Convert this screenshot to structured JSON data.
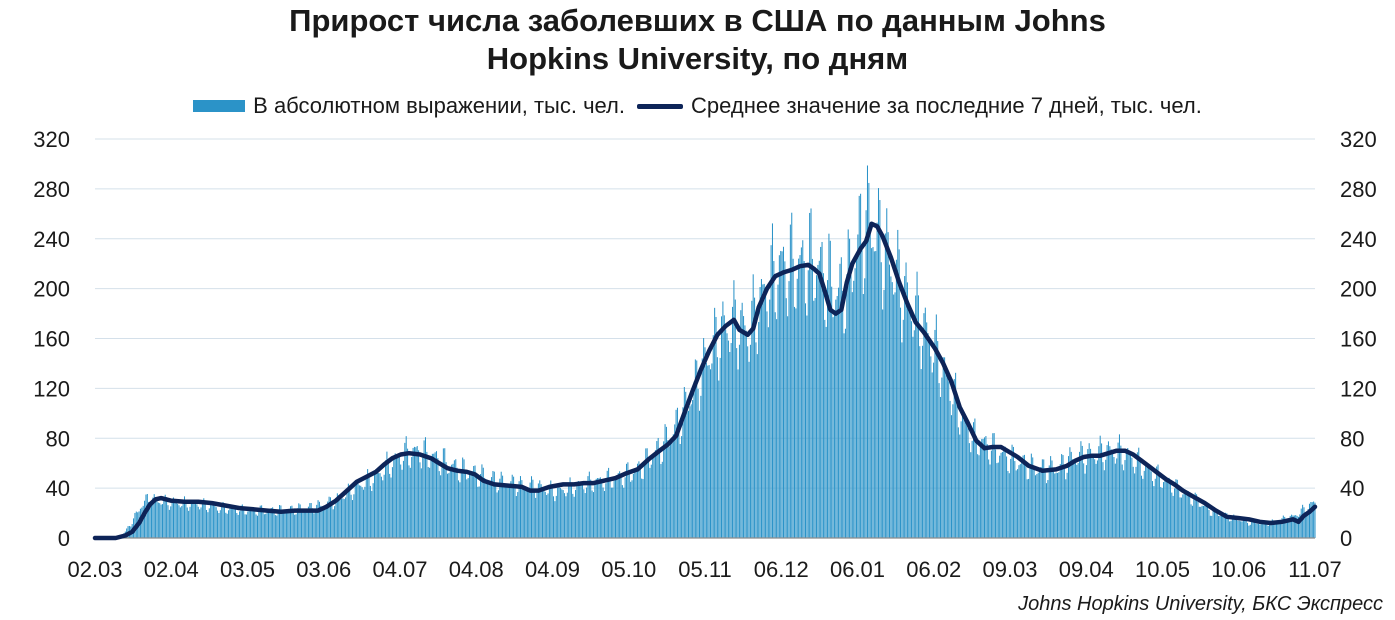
{
  "chart_data": {
    "type": "bar",
    "title": "Прирост числа заболевших в США по данным Johns Hopkins University, по дням",
    "title_lines": [
      "Прирост числа заболевших в США по данным Johns",
      "Hopkins University, по дням"
    ],
    "xlabel": "",
    "ylabel": "",
    "ylim": [
      0,
      320
    ],
    "yticks": [
      "0",
      "40",
      "80",
      "120",
      "160",
      "200",
      "240",
      "280",
      "320"
    ],
    "x_tick_labels": [
      "02.03",
      "02.04",
      "03.05",
      "03.06",
      "04.07",
      "04.08",
      "04.09",
      "05.10",
      "05.11",
      "06.12",
      "06.01",
      "06.02",
      "09.03",
      "09.04",
      "10.05",
      "10.06",
      "11.07"
    ],
    "grid": true,
    "legend_position": "top",
    "colors": {
      "bars": "#2b93c8",
      "line": "#0d2458",
      "grid": "#d4e0ea",
      "axis": "#8c8c8c"
    },
    "series": [
      {
        "name": "В абсолютном выражении, тыс. чел.",
        "type": "bar",
        "points": [
          [
            0,
            0
          ],
          [
            10,
            0
          ],
          [
            18,
            1
          ],
          [
            22,
            5
          ],
          [
            28,
            15
          ],
          [
            33,
            25
          ],
          [
            38,
            31
          ],
          [
            44,
            30
          ],
          [
            60,
            28
          ],
          [
            75,
            27
          ],
          [
            90,
            24
          ],
          [
            110,
            22
          ],
          [
            130,
            22
          ],
          [
            145,
            23
          ],
          [
            160,
            25
          ],
          [
            175,
            30
          ],
          [
            190,
            41
          ],
          [
            205,
            50
          ],
          [
            215,
            60
          ],
          [
            225,
            67
          ],
          [
            235,
            69
          ],
          [
            245,
            65
          ],
          [
            255,
            60
          ],
          [
            265,
            55
          ],
          [
            280,
            50
          ],
          [
            295,
            45
          ],
          [
            305,
            43
          ],
          [
            315,
            42
          ],
          [
            325,
            40
          ],
          [
            335,
            37
          ],
          [
            345,
            40
          ],
          [
            355,
            43
          ],
          [
            365,
            45
          ],
          [
            375,
            47
          ],
          [
            385,
            50
          ],
          [
            395,
            55
          ],
          [
            405,
            66
          ],
          [
            415,
            78
          ],
          [
            425,
            95
          ],
          [
            435,
            120
          ],
          [
            445,
            145
          ],
          [
            455,
            165
          ],
          [
            465,
            172
          ],
          [
            475,
            165
          ],
          [
            480,
            180
          ],
          [
            490,
            205
          ],
          [
            500,
            218
          ],
          [
            510,
            215
          ],
          [
            520,
            222
          ],
          [
            530,
            210
          ],
          [
            540,
            195
          ],
          [
            548,
            210
          ],
          [
            555,
            240
          ],
          [
            562,
            255
          ],
          [
            570,
            238
          ],
          [
            578,
            220
          ],
          [
            588,
            195
          ],
          [
            598,
            175
          ],
          [
            608,
            155
          ],
          [
            618,
            130
          ],
          [
            628,
            100
          ],
          [
            638,
            80
          ],
          [
            648,
            74
          ],
          [
            660,
            66
          ],
          [
            672,
            60
          ],
          [
            685,
            55
          ],
          [
            700,
            56
          ],
          [
            710,
            64
          ],
          [
            720,
            66
          ],
          [
            730,
            68
          ],
          [
            740,
            70
          ],
          [
            750,
            66
          ],
          [
            760,
            58
          ],
          [
            770,
            50
          ],
          [
            780,
            44
          ],
          [
            790,
            36
          ],
          [
            800,
            30
          ],
          [
            810,
            22
          ],
          [
            820,
            18
          ],
          [
            830,
            15
          ],
          [
            840,
            12
          ],
          [
            850,
            12
          ],
          [
            860,
            14
          ],
          [
            870,
            17
          ],
          [
            880,
            24
          ],
          [
            885,
            28
          ]
        ]
      },
      {
        "name": "Среднее значение за последние 7 дней, тыс. чел.",
        "type": "line",
        "points": [
          [
            0,
            0
          ],
          [
            15,
            0
          ],
          [
            22,
            2
          ],
          [
            27,
            5
          ],
          [
            32,
            12
          ],
          [
            36,
            20
          ],
          [
            40,
            27
          ],
          [
            44,
            31
          ],
          [
            48,
            32
          ],
          [
            55,
            30
          ],
          [
            65,
            29
          ],
          [
            75,
            29
          ],
          [
            85,
            28
          ],
          [
            95,
            26
          ],
          [
            105,
            24
          ],
          [
            115,
            23
          ],
          [
            125,
            22
          ],
          [
            135,
            21
          ],
          [
            145,
            22
          ],
          [
            155,
            22
          ],
          [
            162,
            22
          ],
          [
            168,
            25
          ],
          [
            175,
            30
          ],
          [
            182,
            37
          ],
          [
            190,
            45
          ],
          [
            197,
            49
          ],
          [
            204,
            53
          ],
          [
            210,
            59
          ],
          [
            216,
            64
          ],
          [
            222,
            67
          ],
          [
            228,
            68
          ],
          [
            236,
            67
          ],
          [
            244,
            64
          ],
          [
            250,
            60
          ],
          [
            256,
            56
          ],
          [
            263,
            54
          ],
          [
            270,
            53
          ],
          [
            276,
            51
          ],
          [
            282,
            46
          ],
          [
            290,
            43
          ],
          [
            300,
            42
          ],
          [
            310,
            41
          ],
          [
            316,
            38
          ],
          [
            322,
            38
          ],
          [
            330,
            41
          ],
          [
            340,
            43
          ],
          [
            348,
            43
          ],
          [
            355,
            44
          ],
          [
            362,
            44
          ],
          [
            370,
            46
          ],
          [
            378,
            48
          ],
          [
            386,
            52
          ],
          [
            394,
            55
          ],
          [
            402,
            63
          ],
          [
            410,
            70
          ],
          [
            416,
            75
          ],
          [
            422,
            82
          ],
          [
            428,
            100
          ],
          [
            434,
            118
          ],
          [
            440,
            135
          ],
          [
            446,
            150
          ],
          [
            452,
            163
          ],
          [
            458,
            170
          ],
          [
            464,
            175
          ],
          [
            468,
            167
          ],
          [
            474,
            163
          ],
          [
            478,
            168
          ],
          [
            482,
            185
          ],
          [
            488,
            200
          ],
          [
            494,
            210
          ],
          [
            500,
            213
          ],
          [
            506,
            215
          ],
          [
            512,
            218
          ],
          [
            518,
            219
          ],
          [
            522,
            216
          ],
          [
            526,
            212
          ],
          [
            530,
            198
          ],
          [
            534,
            183
          ],
          [
            538,
            180
          ],
          [
            542,
            183
          ],
          [
            546,
            205
          ],
          [
            550,
            220
          ],
          [
            556,
            232
          ],
          [
            560,
            238
          ],
          [
            564,
            252
          ],
          [
            568,
            250
          ],
          [
            572,
            242
          ],
          [
            578,
            225
          ],
          [
            584,
            205
          ],
          [
            590,
            188
          ],
          [
            596,
            173
          ],
          [
            602,
            165
          ],
          [
            610,
            152
          ],
          [
            616,
            140
          ],
          [
            622,
            125
          ],
          [
            628,
            105
          ],
          [
            634,
            92
          ],
          [
            640,
            78
          ],
          [
            646,
            72
          ],
          [
            652,
            73
          ],
          [
            658,
            73
          ],
          [
            664,
            69
          ],
          [
            670,
            65
          ],
          [
            678,
            58
          ],
          [
            688,
            54
          ],
          [
            698,
            55
          ],
          [
            706,
            58
          ],
          [
            712,
            62
          ],
          [
            718,
            65
          ],
          [
            724,
            66
          ],
          [
            730,
            66
          ],
          [
            736,
            68
          ],
          [
            742,
            70
          ],
          [
            748,
            70
          ],
          [
            754,
            67
          ],
          [
            760,
            62
          ],
          [
            766,
            57
          ],
          [
            772,
            52
          ],
          [
            778,
            47
          ],
          [
            784,
            43
          ],
          [
            790,
            38
          ],
          [
            798,
            33
          ],
          [
            806,
            28
          ],
          [
            814,
            22
          ],
          [
            822,
            17
          ],
          [
            830,
            16
          ],
          [
            838,
            15
          ],
          [
            846,
            13
          ],
          [
            854,
            12
          ],
          [
            862,
            13
          ],
          [
            870,
            15
          ],
          [
            874,
            13
          ],
          [
            878,
            18
          ],
          [
            882,
            21
          ],
          [
            886,
            25
          ]
        ]
      }
    ]
  },
  "source": "Johns Hopkins University, БКС Экспресс"
}
